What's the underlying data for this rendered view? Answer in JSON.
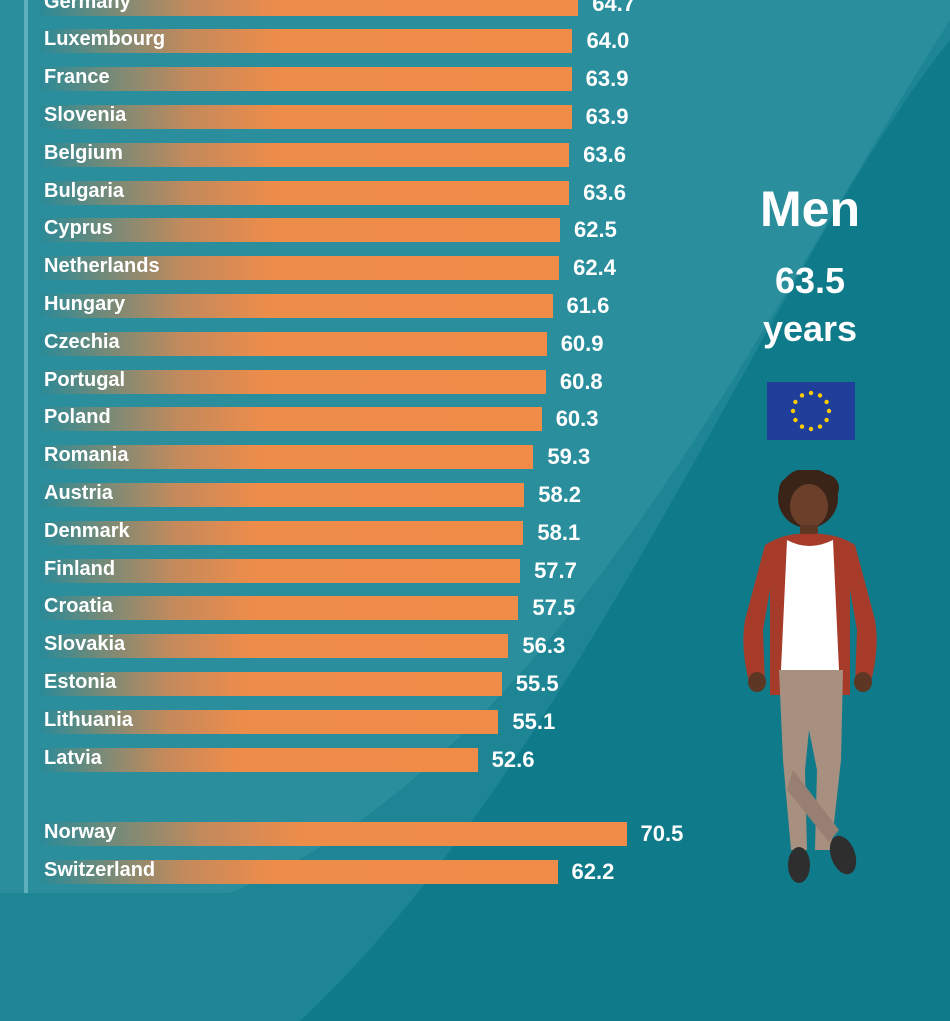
{
  "chart_data": {
    "type": "bar",
    "orientation": "horizontal",
    "categories": [
      "Germany",
      "Luxembourg",
      "France",
      "Slovenia",
      "Belgium",
      "Bulgaria",
      "Cyprus",
      "Netherlands",
      "Hungary",
      "Czechia",
      "Portugal",
      "Poland",
      "Romania",
      "Austria",
      "Denmark",
      "Finland",
      "Croatia",
      "Slovakia",
      "Estonia",
      "Lithuania",
      "Latvia",
      "Norway",
      "Switzerland"
    ],
    "values": [
      64.7,
      64.0,
      63.9,
      63.9,
      63.6,
      63.6,
      62.5,
      62.4,
      61.6,
      60.9,
      60.8,
      60.3,
      59.3,
      58.2,
      58.1,
      57.7,
      57.5,
      56.3,
      55.5,
      55.1,
      52.6,
      70.5,
      62.2
    ],
    "value_labels": [
      "64.7",
      "64.0",
      "63.9",
      "63.9",
      "63.6",
      "63.6",
      "62.5",
      "62.4",
      "61.6",
      "60.9",
      "60.8",
      "60.3",
      "59.3",
      "58.2",
      "58.1",
      "57.7",
      "57.5",
      "56.3",
      "55.5",
      "55.1",
      "52.6",
      "70.5",
      "62.2"
    ],
    "groups": [
      {
        "members": [
          "Germany",
          "Luxembourg",
          "France",
          "Slovenia",
          "Belgium",
          "Bulgaria",
          "Cyprus",
          "Netherlands",
          "Hungary",
          "Czechia",
          "Portugal",
          "Poland",
          "Romania",
          "Austria",
          "Denmark",
          "Finland",
          "Croatia",
          "Slovakia",
          "Estonia",
          "Lithuania",
          "Latvia"
        ]
      },
      {
        "members": [
          "Norway",
          "Switzerland"
        ]
      }
    ],
    "bar_color": "#f08c48",
    "grid": false
  },
  "summary": {
    "title": "Men",
    "value": "63.5",
    "unit": "years"
  },
  "colors": {
    "background": "#0f7a89",
    "panel": "#2a8a98",
    "accent": "#f08c48",
    "text": "#ffffff",
    "eu_blue": "#1f3f9a",
    "eu_star": "#ffcc00"
  },
  "icons": {
    "flag": "eu-flag-icon",
    "figure": "man-figure-illustration"
  }
}
